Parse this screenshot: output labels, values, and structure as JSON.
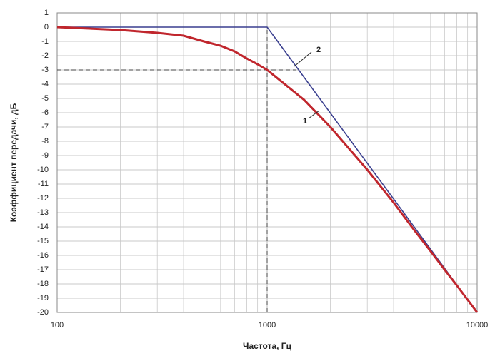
{
  "chart_data": {
    "type": "line",
    "x_label": "Частота, Гц",
    "y_label": "Коэффициент передачи, дБ",
    "log_x": true,
    "grid": true,
    "xlim": [
      100,
      10000
    ],
    "ylim": [
      -20,
      1
    ],
    "xticks": [
      100,
      1000,
      10000
    ],
    "xminor_ticks": [
      200,
      300,
      400,
      500,
      600,
      700,
      800,
      900,
      2000,
      3000,
      4000,
      5000,
      6000,
      7000,
      8000,
      9000
    ],
    "yticks": [
      1,
      0,
      -1,
      -2,
      -3,
      -4,
      -5,
      -6,
      -7,
      -8,
      -9,
      -10,
      -11,
      -12,
      -13,
      -14,
      -15,
      -16,
      -17,
      -18,
      -19,
      -20
    ],
    "reference": {
      "x": 1000,
      "y": -3
    },
    "series": [
      {
        "name": "1",
        "color": "#c0262d",
        "x": [
          100,
          200,
          300,
          400,
          500,
          600,
          700,
          800,
          900,
          1000,
          1500,
          2000,
          3000,
          4000,
          5000,
          6000,
          7000,
          8000,
          9000,
          10000
        ],
        "values": [
          0,
          -0.2,
          -0.4,
          -0.6,
          -1.0,
          -1.3,
          -1.7,
          -2.2,
          -2.6,
          -3.0,
          -5.1,
          -7.0,
          -10.0,
          -12.3,
          -14.2,
          -15.7,
          -17.0,
          -18.1,
          -19.1,
          -20.0
        ]
      },
      {
        "name": "2",
        "color": "#3a3f8f",
        "x": [
          100,
          1000,
          10000
        ],
        "values": [
          0,
          0,
          -20
        ]
      }
    ]
  }
}
